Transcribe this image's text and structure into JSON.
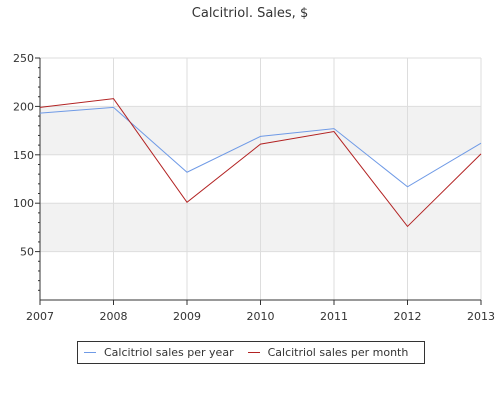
{
  "chart_data": {
    "type": "line",
    "title": "Calcitriol. Sales, $",
    "xlabel": "",
    "ylabel": "",
    "x": [
      2007,
      2008,
      2009,
      2010,
      2011,
      2012,
      2013
    ],
    "x_tick_labels": [
      "2007",
      "2008",
      "2009",
      "2010",
      "2011",
      "2012",
      "2013"
    ],
    "y_ticks": [
      50,
      100,
      150,
      200,
      250
    ],
    "y_tick_labels": [
      "50",
      "100",
      "150",
      "200",
      "250"
    ],
    "ylim": [
      0,
      250
    ],
    "grid": true,
    "legend_position": "bottom",
    "series": [
      {
        "name": "Calcitriol sales per year",
        "color": "#6f9ae6",
        "values": [
          193,
          199,
          132,
          169,
          177,
          117,
          162
        ]
      },
      {
        "name": "Calcitriol sales per month",
        "color": "#b22222",
        "values": [
          199,
          208,
          101,
          161,
          174,
          76,
          151
        ]
      }
    ]
  }
}
